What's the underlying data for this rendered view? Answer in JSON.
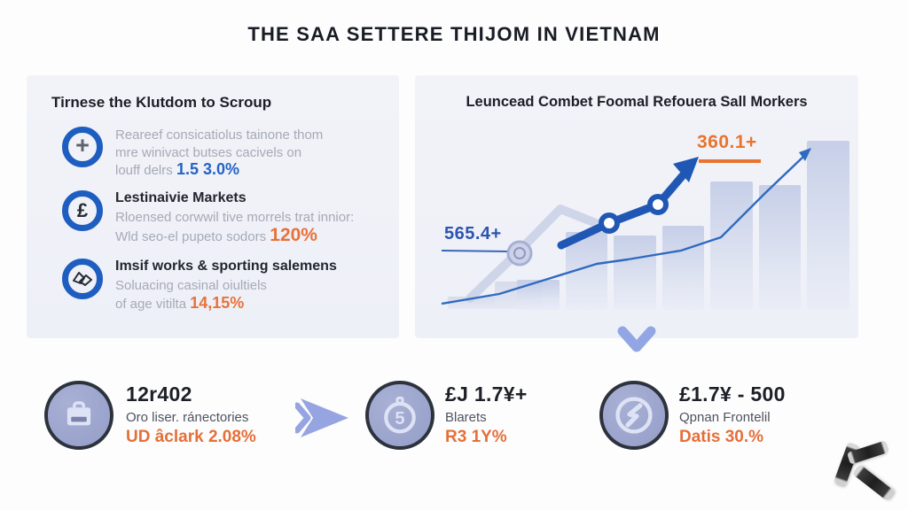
{
  "title": "THE SAA SETTERE THIJOM IN VIETNAM",
  "left_panel": {
    "heading": "Tirnese the Klutdom to Scroup",
    "items": [
      {
        "icon": "plus-circle-icon",
        "glyph": "+",
        "title": "",
        "lines": [
          "Reareef consicatiolus tainone thom",
          "mre winivact butses cacivels on"
        ],
        "prefix": "louff delrs",
        "highlight": "1.5 3.0%",
        "highlight_color": "#2563c4"
      },
      {
        "icon": "pound-circle-icon",
        "glyph": "£",
        "title": "Lestinaivie Markets",
        "lines": [
          "Rloensed corwwil tive morrels trat innior:"
        ],
        "prefix": "Wld seo-el pupeto sodors",
        "highlight": "120%",
        "highlight_color": "#e8713a"
      },
      {
        "icon": "scribble-circle-icon",
        "glyph": "",
        "title": "Imsif works & sporting salemens",
        "lines": [
          "Soluacing casinal oiultiels"
        ],
        "prefix": "of age vitilta",
        "highlight": "14,15%",
        "highlight_color": "#e8713a"
      }
    ]
  },
  "right_panel": {
    "heading": "Leuncead Combet Foomal Refouera Sall Morkers",
    "chart_data": {
      "type": "bar",
      "categories": [
        "1",
        "2",
        "3",
        "4",
        "5",
        "6",
        "7"
      ],
      "values": [
        16,
        42,
        40,
        45,
        69,
        67,
        91
      ],
      "series": [
        {
          "name": "trend-line",
          "type": "line",
          "values": [
            4,
            10,
            18,
            26,
            30,
            36,
            48,
            72,
            92
          ]
        },
        {
          "name": "highlight-line",
          "type": "line-arrow",
          "values": [
            38,
            52,
            60,
            82
          ]
        }
      ],
      "annotations": [
        {
          "text": "565.4+",
          "color": "#2b55b0",
          "position": "left"
        },
        {
          "text": "360.1+",
          "color": "#e8742e",
          "position": "upper-right"
        }
      ],
      "title": "",
      "xlabel": "",
      "ylabel": "",
      "axes_visible": false,
      "grid": false,
      "legend": false,
      "ylim": [
        0,
        100
      ]
    },
    "label_low": "565.4+",
    "label_high": "360.1+"
  },
  "stats": [
    {
      "icon": "briefcase-icon",
      "value": "12r402",
      "label": "Oro liser. ránectories",
      "highlight": "UD âclark 2.08%"
    },
    {
      "icon": "stopwatch-icon",
      "value": "£J 1.7¥+",
      "label": "Blarets",
      "highlight": "R3 1Y%"
    },
    {
      "icon": "clock-icon",
      "value": "£1.7¥ - 500",
      "label": "Qpnan Frontelil",
      "highlight": "Datis 30.%"
    }
  ],
  "colors": {
    "accent_blue": "#2157b4",
    "accent_orange": "#e8713a",
    "panel_bg": "#f1f2f8",
    "muted_text": "#a4aab6",
    "dark_text": "#1c1f27",
    "light_arrow": "#93a6e4"
  }
}
